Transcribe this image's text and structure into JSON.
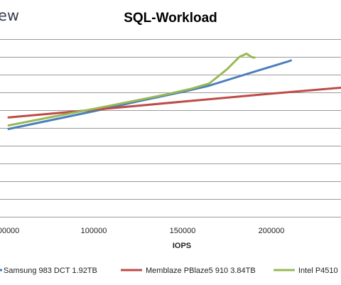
{
  "brand_text": "ew",
  "chart_data": {
    "type": "line",
    "title": "SQL-Workload",
    "xlabel": "IOPS",
    "ylabel": "",
    "x_ticks": [
      "100000",
      "150000",
      "200000"
    ],
    "x_ticks_partial": [
      "00000"
    ],
    "xlim": [
      53000,
      243000
    ],
    "ylim": [
      0,
      10
    ],
    "grid": true,
    "legend_position": "bottom",
    "series": [
      {
        "name": "Samsung 983 DCT 1.92TB",
        "color": "#4a7ebb",
        "points": [
          [
            52000,
            4.94
          ],
          [
            75000,
            5.42
          ],
          [
            100000,
            5.94
          ],
          [
            125000,
            6.5
          ],
          [
            150000,
            7.03
          ],
          [
            165000,
            7.38
          ],
          [
            185000,
            8.0
          ],
          [
            210000,
            8.76
          ],
          [
            211000,
            8.8
          ]
        ]
      },
      {
        "name": "Memblaze PBlaze5 910 3.84TB",
        "color": "#be4b48",
        "points": [
          [
            52000,
            5.59
          ],
          [
            100000,
            6.02
          ],
          [
            150000,
            6.48
          ],
          [
            200000,
            6.93
          ],
          [
            243000,
            7.3
          ]
        ]
      },
      {
        "name": "Intel P4510",
        "color": "#98b954",
        "points": [
          [
            52000,
            5.14
          ],
          [
            80000,
            5.69
          ],
          [
            110000,
            6.27
          ],
          [
            140000,
            6.87
          ],
          [
            155000,
            7.21
          ],
          [
            165000,
            7.5
          ],
          [
            175000,
            8.3
          ],
          [
            182000,
            9.0
          ],
          [
            186000,
            9.18
          ],
          [
            189000,
            8.98
          ],
          [
            190500,
            8.96
          ]
        ]
      }
    ]
  }
}
